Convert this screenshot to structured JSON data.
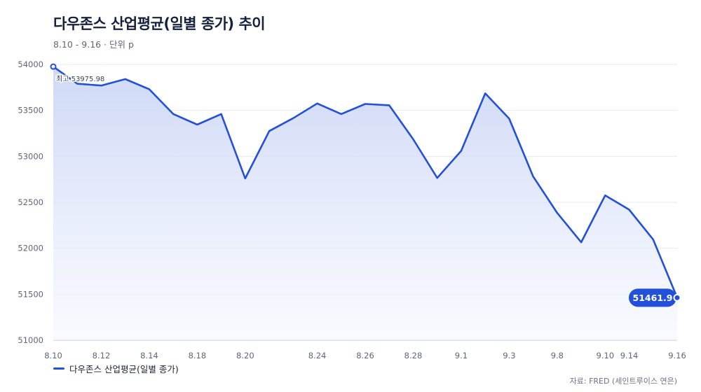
{
  "header": {
    "title": "다우존스 산업평균(일별 종가) 추이",
    "subtitle": "8.10 - 9.16 · 단위 p"
  },
  "source": "자료: FRED (세인트루이스 연은)",
  "colors": {
    "line": "#2350d8",
    "area_top": "#c9d4f5",
    "area_bottom": "#f4f7ff",
    "grid": "#e6ebf3",
    "axis": "#c7ced9",
    "tick_text": "#5d6677"
  },
  "chart_data": {
    "type": "area",
    "title": "다우존스 산업평균(일별 종가) 추이",
    "unit": "p",
    "ylim": [
      51000,
      54000
    ],
    "yticks": [
      51000,
      51500,
      52000,
      52500,
      53000,
      53500,
      54000
    ],
    "xtick_labels": [
      "8.10",
      "8.12",
      "8.14",
      "8.18",
      "8.20",
      "8.24",
      "8.26",
      "8.28",
      "9.1",
      "9.3",
      "9.8",
      "9.10",
      "9.14",
      "9.16"
    ],
    "grid": true,
    "legend": "bottom-left",
    "series": [
      {
        "name": "다우존스 산업평균(일별 종가)",
        "points": [
          {
            "x": "8.10",
            "y": 53975.98
          },
          {
            "x": "8.11",
            "y": 53790
          },
          {
            "x": "8.12",
            "y": 53770
          },
          {
            "x": "8.13",
            "y": 53840
          },
          {
            "x": "8.14",
            "y": 53730
          },
          {
            "x": "8.15",
            "y": 53460
          },
          {
            "x": "8.18",
            "y": 53345
          },
          {
            "x": "8.19",
            "y": 53460
          },
          {
            "x": "8.20",
            "y": 52760
          },
          {
            "x": "8.21",
            "y": 53275
          },
          {
            "x": "8.22",
            "y": 53415
          },
          {
            "x": "8.24",
            "y": 53575
          },
          {
            "x": "8.25",
            "y": 53460
          },
          {
            "x": "8.26",
            "y": 53570
          },
          {
            "x": "8.27",
            "y": 53555
          },
          {
            "x": "8.28",
            "y": 53185
          },
          {
            "x": "8.31",
            "y": 52765
          },
          {
            "x": "9.1",
            "y": 53060
          },
          {
            "x": "9.2",
            "y": 53685
          },
          {
            "x": "9.3",
            "y": 53410
          },
          {
            "x": "9.7",
            "y": 52780
          },
          {
            "x": "9.8",
            "y": 52385
          },
          {
            "x": "9.9",
            "y": 52065
          },
          {
            "x": "9.10",
            "y": 52575
          },
          {
            "x": "9.14",
            "y": 52420
          },
          {
            "x": "9.15",
            "y": 52095
          },
          {
            "x": "9.16",
            "y": 51461.9
          }
        ]
      }
    ],
    "annotations": {
      "max_label": "최고 53975.98",
      "last_label": "51461.9"
    }
  }
}
